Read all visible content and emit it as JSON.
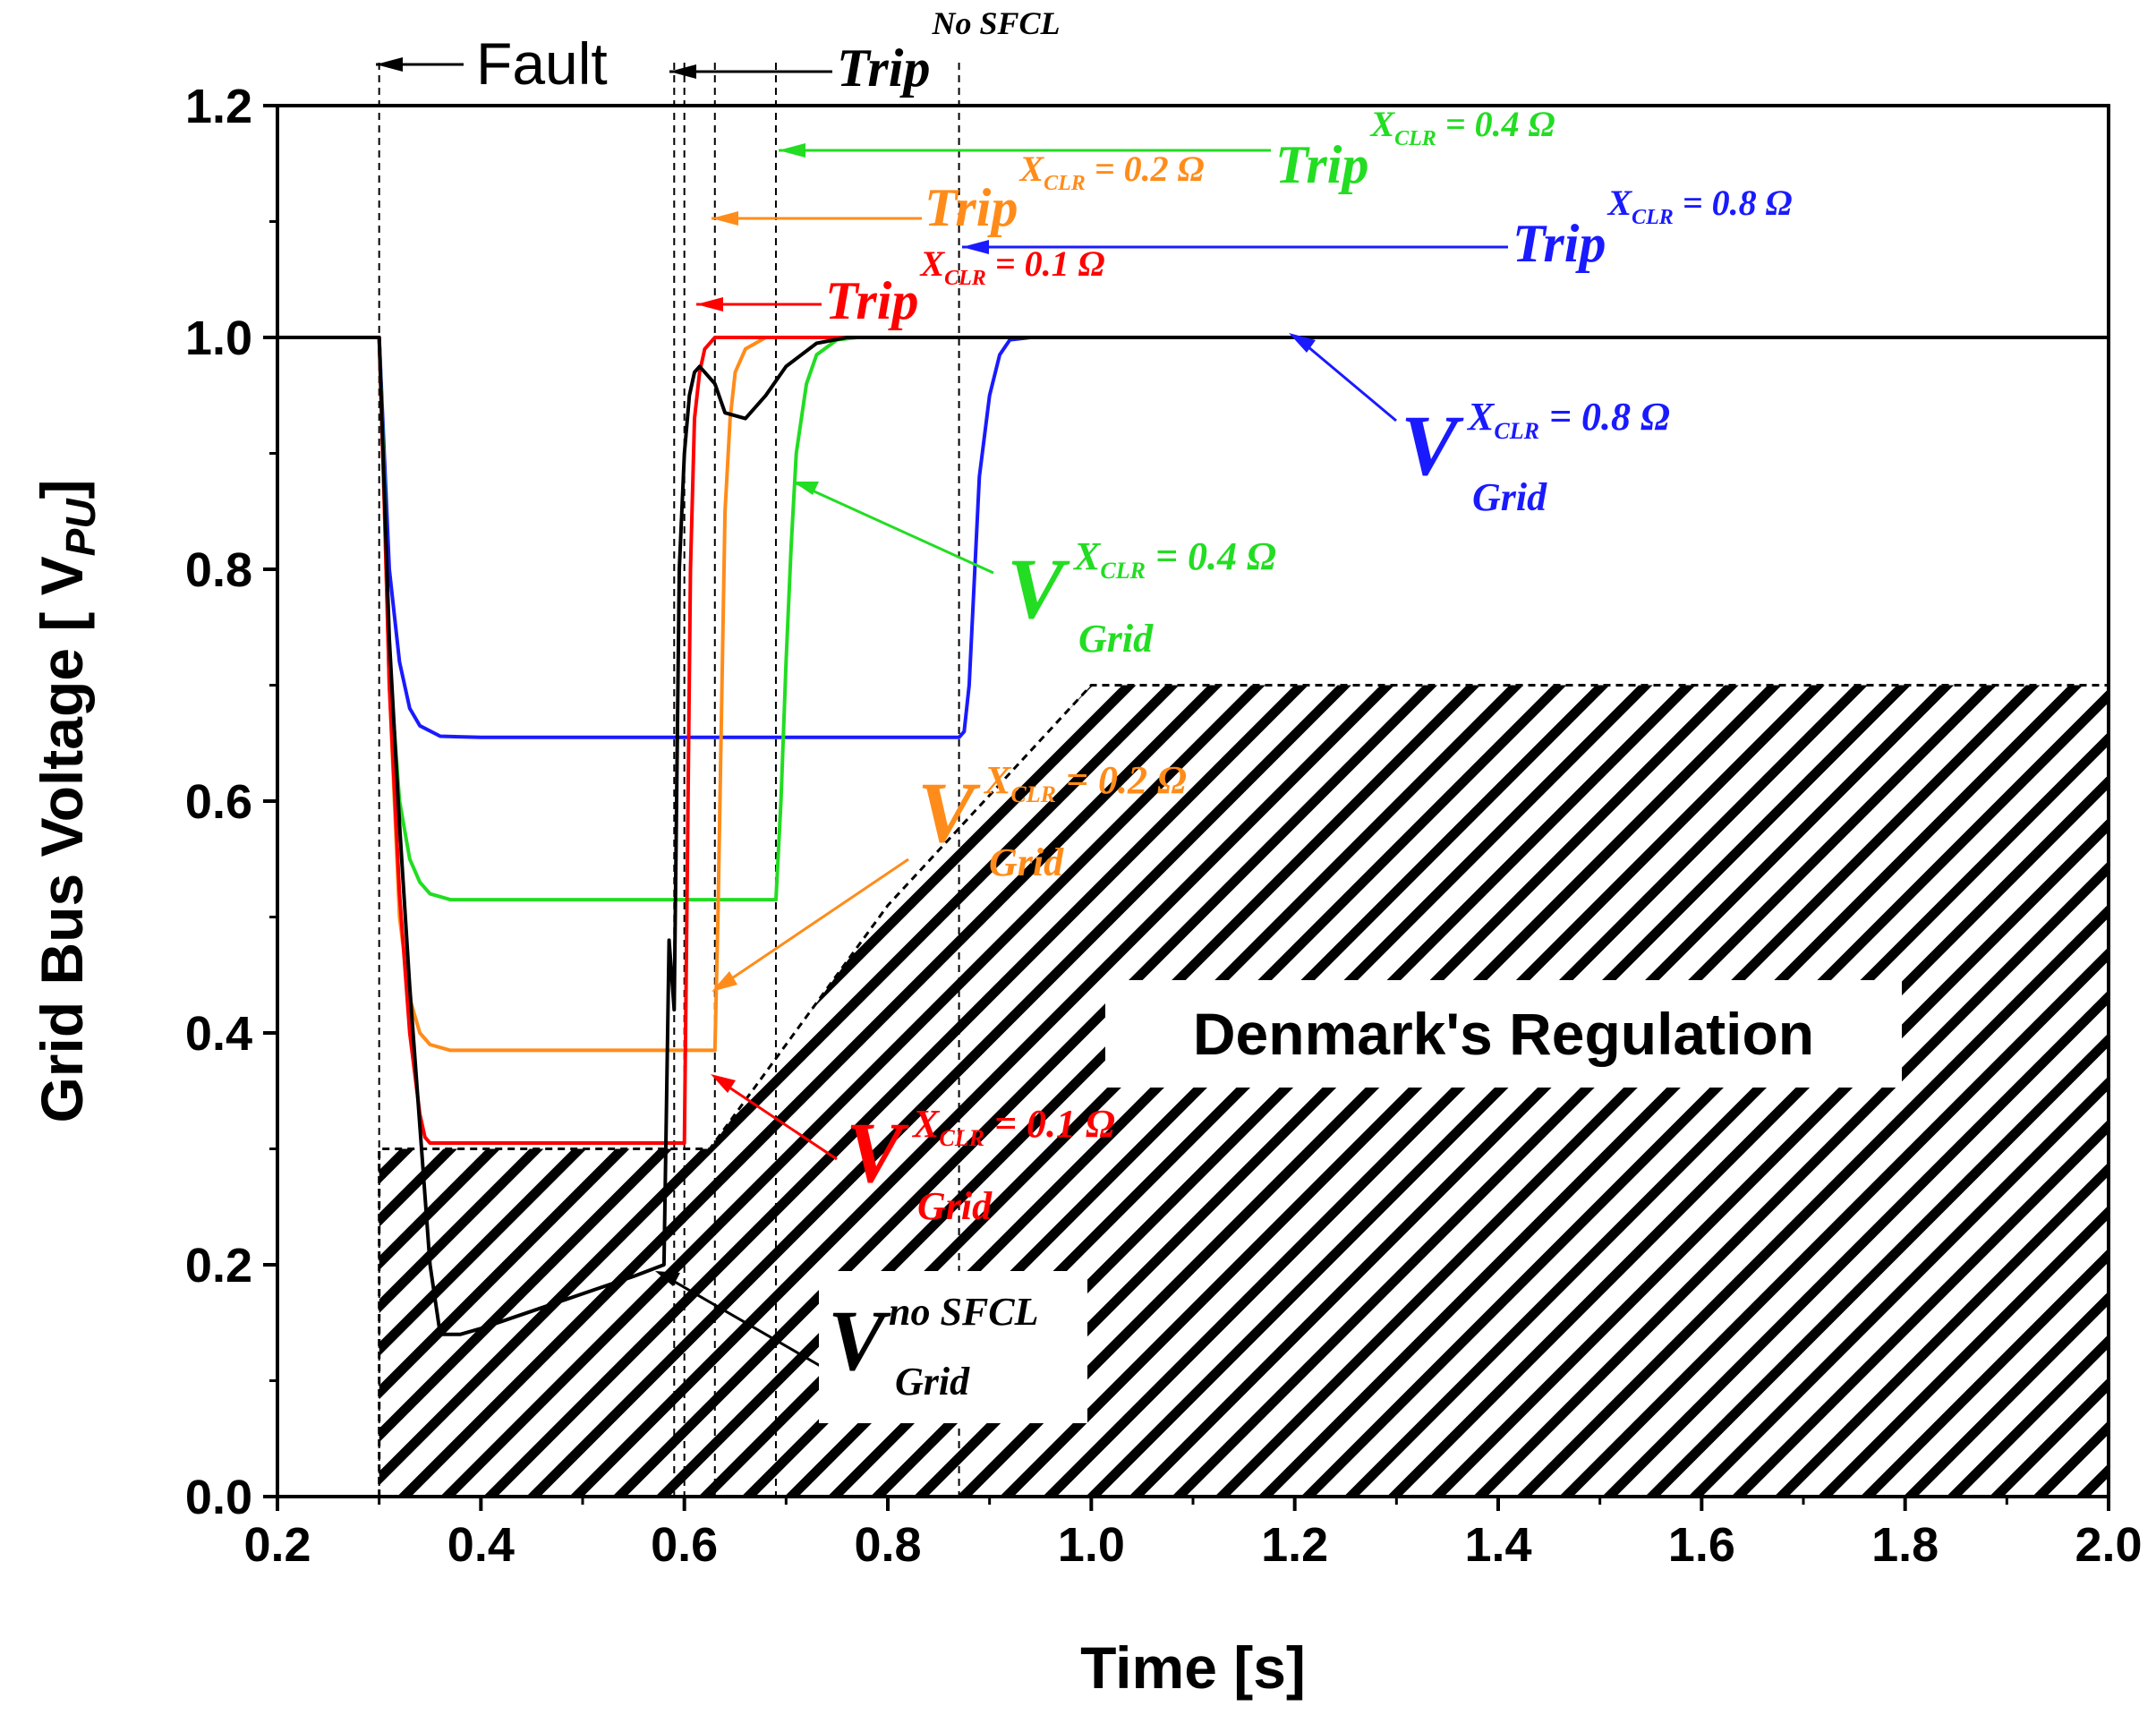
{
  "chart_data": {
    "type": "line",
    "title": "",
    "xlabel": "Time [s]",
    "ylabel_main": "Grid Bus Voltage [ V",
    "ylabel_sub": "PU",
    "ylabel_end": "]",
    "xlim": [
      0.2,
      2.0
    ],
    "ylim": [
      0.0,
      1.2
    ],
    "xticks": [
      0.2,
      0.4,
      0.6,
      0.8,
      1.0,
      1.2,
      1.4,
      1.6,
      1.8,
      2.0
    ],
    "yticks": [
      0.0,
      0.2,
      0.4,
      0.6,
      0.8,
      1.0,
      1.2
    ],
    "x_tick_labels": [
      "0.2",
      "0.4",
      "0.6",
      "0.8",
      "1.0",
      "1.2",
      "1.4",
      "1.6",
      "1.8",
      "2.0"
    ],
    "y_tick_labels": [
      "0.0",
      "0.2",
      "0.4",
      "0.6",
      "0.8",
      "1.0",
      "1.2"
    ],
    "colors": {
      "no_sfcl": "#000000",
      "x01": "#ff0000",
      "x02": "#ff8c1a",
      "x04": "#22dd22",
      "x08": "#1a1aff"
    },
    "series": [
      {
        "name": "V_Grid X_CLR = 0.8 Ω",
        "color": "#1a1aff",
        "x": [
          0.2,
          0.3,
          0.305,
          0.31,
          0.32,
          0.33,
          0.34,
          0.36,
          0.4,
          0.5,
          0.6,
          0.7,
          0.8,
          0.87,
          0.875,
          0.88,
          0.885,
          0.89,
          0.9,
          0.91,
          0.92,
          0.94,
          1.0,
          2.0
        ],
        "y": [
          1.0,
          1.0,
          0.9,
          0.8,
          0.72,
          0.68,
          0.665,
          0.656,
          0.655,
          0.655,
          0.655,
          0.655,
          0.655,
          0.655,
          0.66,
          0.7,
          0.79,
          0.88,
          0.95,
          0.985,
          0.998,
          1.0,
          1.0,
          1.0
        ]
      },
      {
        "name": "V_Grid X_CLR = 0.4 Ω",
        "color": "#22dd22",
        "x": [
          0.2,
          0.3,
          0.305,
          0.31,
          0.32,
          0.33,
          0.34,
          0.35,
          0.37,
          0.4,
          0.5,
          0.6,
          0.69,
          0.695,
          0.7,
          0.705,
          0.71,
          0.72,
          0.73,
          0.75,
          0.77,
          2.0
        ],
        "y": [
          1.0,
          1.0,
          0.88,
          0.72,
          0.6,
          0.55,
          0.53,
          0.52,
          0.515,
          0.515,
          0.515,
          0.515,
          0.515,
          0.6,
          0.72,
          0.82,
          0.9,
          0.96,
          0.985,
          0.998,
          1.0,
          1.0
        ]
      },
      {
        "name": "V_Grid X_CLR = 0.2 Ω",
        "color": "#ff8c1a",
        "x": [
          0.2,
          0.3,
          0.305,
          0.31,
          0.32,
          0.33,
          0.34,
          0.35,
          0.37,
          0.4,
          0.5,
          0.63,
          0.633,
          0.637,
          0.64,
          0.645,
          0.65,
          0.66,
          0.68,
          0.7,
          2.0
        ],
        "y": [
          1.0,
          1.0,
          0.86,
          0.7,
          0.5,
          0.43,
          0.4,
          0.39,
          0.385,
          0.385,
          0.385,
          0.385,
          0.5,
          0.7,
          0.85,
          0.93,
          0.97,
          0.99,
          1.0,
          1.0,
          1.0
        ]
      },
      {
        "name": "V_Grid X_CLR = 0.1 Ω",
        "color": "#ff0000",
        "x": [
          0.2,
          0.3,
          0.305,
          0.31,
          0.32,
          0.33,
          0.34,
          0.345,
          0.35,
          0.4,
          0.5,
          0.6,
          0.603,
          0.606,
          0.61,
          0.615,
          0.62,
          0.63,
          0.64,
          0.66,
          2.0
        ],
        "y": [
          1.0,
          1.0,
          0.86,
          0.7,
          0.52,
          0.4,
          0.33,
          0.31,
          0.305,
          0.305,
          0.305,
          0.305,
          0.55,
          0.8,
          0.93,
          0.97,
          0.99,
          1.0,
          1.0,
          1.0,
          1.0
        ]
      },
      {
        "name": "V_Grid no SFCL",
        "color": "#000000",
        "x": [
          0.2,
          0.3,
          0.305,
          0.31,
          0.32,
          0.33,
          0.34,
          0.35,
          0.36,
          0.37,
          0.38,
          0.4,
          0.45,
          0.5,
          0.55,
          0.58,
          0.585,
          0.59,
          0.595,
          0.6,
          0.605,
          0.61,
          0.615,
          0.62,
          0.63,
          0.64,
          0.66,
          0.68,
          0.7,
          0.73,
          0.76,
          0.8,
          2.0
        ],
        "y": [
          1.0,
          1.0,
          0.87,
          0.74,
          0.58,
          0.44,
          0.32,
          0.2,
          0.14,
          0.14,
          0.14,
          0.145,
          0.16,
          0.175,
          0.19,
          0.2,
          0.48,
          0.42,
          0.8,
          0.9,
          0.95,
          0.97,
          0.975,
          0.97,
          0.96,
          0.935,
          0.93,
          0.95,
          0.975,
          0.995,
          1.0,
          1.0,
          1.0
        ]
      }
    ],
    "regulation_region": {
      "label": "Denmark's Regulation",
      "boundary_x": [
        0.3,
        0.3,
        0.625,
        0.8,
        1.0,
        2.0,
        2.0
      ],
      "boundary_y": [
        0.0,
        0.3,
        0.3,
        0.51,
        0.7,
        0.7,
        0.0
      ]
    },
    "vertical_markers": [
      {
        "name": "fault-start",
        "x": 0.3
      },
      {
        "name": "trip-no-sfcl",
        "x": 0.59
      },
      {
        "name": "trip-x01",
        "x": 0.6
      },
      {
        "name": "trip-x02",
        "x": 0.63
      },
      {
        "name": "trip-x04",
        "x": 0.69
      },
      {
        "name": "trip-x08",
        "x": 0.87
      }
    ],
    "annotations": {
      "fault": "Fault",
      "trip_no_sfcl": {
        "main": "Trip",
        "sup": "No SFCL"
      },
      "trip_x04": {
        "main": "Trip",
        "sup": "X",
        "sup_sub": "CLR",
        "sup_tail": " = 0.4 Ω"
      },
      "trip_x02": {
        "main": "Trip",
        "sup": "X",
        "sup_sub": "CLR",
        "sup_tail": " = 0.2 Ω"
      },
      "trip_x08": {
        "main": "Trip",
        "sup": "X",
        "sup_sub": "CLR",
        "sup_tail": " = 0.8 Ω"
      },
      "trip_x01": {
        "main": "Trip",
        "sup": "X",
        "sup_sub": "CLR",
        "sup_tail": " = 0.1 Ω"
      },
      "v_x08": {
        "main": "V",
        "sup": "X",
        "sup_sub": "CLR",
        "sup_tail": " = 0.8 Ω",
        "sub": "Grid"
      },
      "v_x04": {
        "main": "V",
        "sup": "X",
        "sup_sub": "CLR",
        "sup_tail": " = 0.4 Ω",
        "sub": "Grid"
      },
      "v_x02": {
        "main": "V",
        "sup": "X",
        "sup_sub": "CLR",
        "sup_tail": " = 0.2 Ω",
        "sub": "Grid"
      },
      "v_x01": {
        "main": "V",
        "sup": "X",
        "sup_sub": "CLR",
        "sup_tail": " = 0.1 Ω",
        "sub": "Grid"
      },
      "v_no_sfcl": {
        "main": "V",
        "sup": "no SFCL",
        "sub": "Grid"
      }
    }
  }
}
